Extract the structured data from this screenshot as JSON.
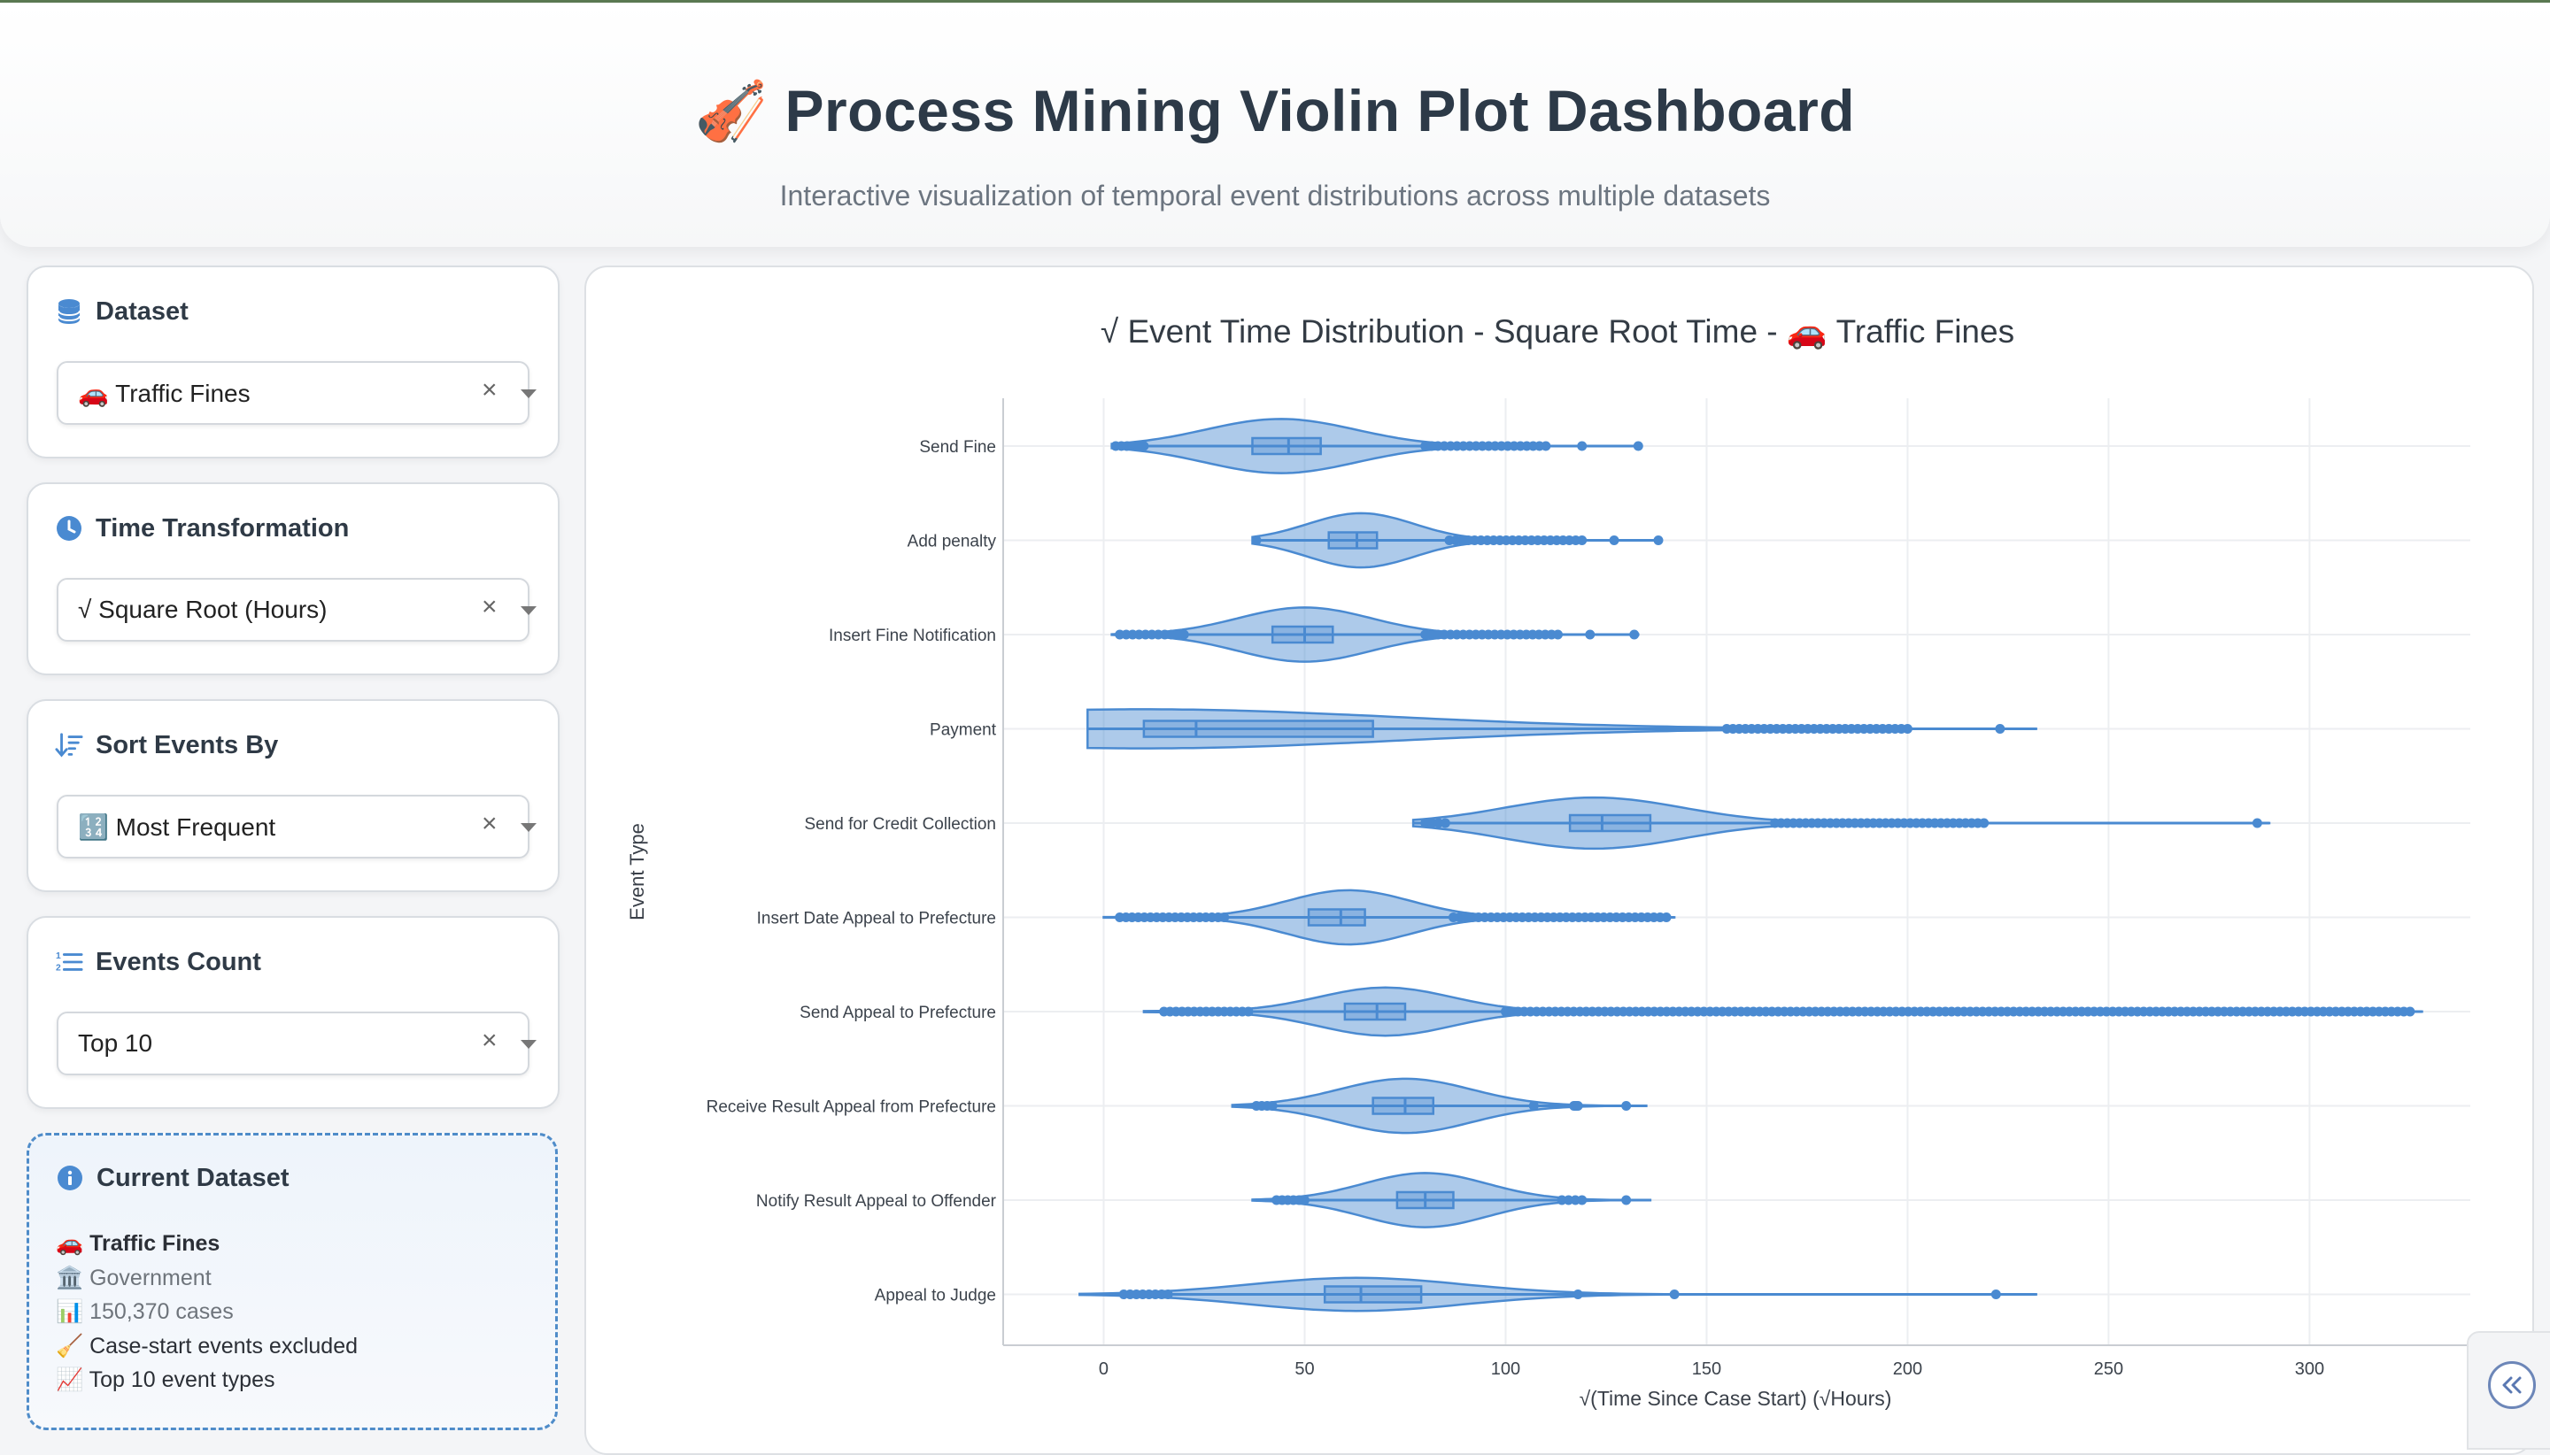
{
  "header": {
    "icon": "🎻",
    "title": "Process Mining Violin Plot Dashboard",
    "subtitle": "Interactive visualization of temporal event distributions across multiple datasets"
  },
  "controls": {
    "dataset": {
      "label": "Dataset",
      "icon": "database-icon",
      "value": "🚗 Traffic Fines"
    },
    "time_transformation": {
      "label": "Time Transformation",
      "icon": "clock-icon",
      "value": "√ Square Root (Hours)"
    },
    "sort_events": {
      "label": "Sort Events By",
      "icon": "sort-icon",
      "value": "🔢 Most Frequent"
    },
    "events_count": {
      "label": "Events Count",
      "icon": "numbered-list-icon",
      "value": "Top 10"
    },
    "clear_symbol": "×"
  },
  "current_dataset": {
    "title": "Current Dataset",
    "name": "🚗 Traffic Fines",
    "domain": "🏛️ Government",
    "cases": "📊 150,370 cases",
    "exclusion": "🧹 Case-start events excluded",
    "event_types": "📈 Top 10 event types"
  },
  "chart_data": {
    "type": "violin",
    "title": "√ Event Time Distribution - Square Root Time - 🚗 Traffic Fines",
    "xlabel": "√(Time Since Case Start) (√Hours)",
    "ylabel": "Event Type",
    "xlim": [
      -25,
      340
    ],
    "xticks": [
      0,
      50,
      100,
      150,
      200,
      250,
      300
    ],
    "orientation": "horizontal",
    "color": "#4a8ad1",
    "grid": true,
    "categories": [
      "Send Fine",
      "Add penalty",
      "Insert Fine Notification",
      "Payment",
      "Send for Credit Collection",
      "Insert Date Appeal to Prefecture",
      "Send Appeal to Prefecture",
      "Receive Result Appeal from Prefecture",
      "Notify Result Appeal to Offender",
      "Appeal to Judge"
    ],
    "series": [
      {
        "min": 2,
        "q1": 37,
        "median": 46,
        "q3": 54,
        "max": 133,
        "peak": 44,
        "halfwidth": 0.9,
        "outlier_ranges": [
          [
            3,
            10
          ],
          [
            80,
            110
          ],
          [
            119,
            119
          ],
          [
            133,
            133
          ]
        ]
      },
      {
        "min": 37,
        "q1": 56,
        "median": 63,
        "q3": 68,
        "max": 138,
        "peak": 64,
        "halfwidth": 0.9,
        "outlier_ranges": [
          [
            38,
            38
          ],
          [
            86,
            119
          ],
          [
            127,
            127
          ],
          [
            138,
            138
          ]
        ]
      },
      {
        "min": 2,
        "q1": 42,
        "median": 50,
        "q3": 57,
        "max": 133,
        "peak": 50,
        "halfwidth": 0.9,
        "outlier_ranges": [
          [
            4,
            20
          ],
          [
            80,
            113
          ],
          [
            121,
            121
          ],
          [
            132,
            132
          ]
        ]
      },
      {
        "min": -4,
        "q1": 10,
        "median": 23,
        "q3": 67,
        "max": 232,
        "peak": 10,
        "halfwidth": 0.65,
        "outlier_ranges": [
          [
            155,
            200
          ],
          [
            223,
            223
          ]
        ]
      },
      {
        "min": 77,
        "q1": 116,
        "median": 124,
        "q3": 136,
        "max": 290,
        "peak": 122,
        "halfwidth": 0.85,
        "outlier_ranges": [
          [
            80,
            85
          ],
          [
            167,
            219
          ],
          [
            287,
            287
          ]
        ]
      },
      {
        "min": 0,
        "q1": 51,
        "median": 59,
        "q3": 65,
        "max": 142,
        "peak": 61,
        "halfwidth": 0.9,
        "outlier_ranges": [
          [
            4,
            30
          ],
          [
            87,
            140
          ]
        ]
      },
      {
        "min": 10,
        "q1": 60,
        "median": 68,
        "q3": 75,
        "max": 328,
        "peak": 70,
        "halfwidth": 0.8,
        "outlier_ranges": [
          [
            15,
            36
          ],
          [
            100,
            325
          ]
        ]
      },
      {
        "min": 32,
        "q1": 67,
        "median": 75,
        "q3": 82,
        "max": 135,
        "peak": 75,
        "halfwidth": 0.9,
        "outlier_ranges": [
          [
            38,
            42
          ],
          [
            107,
            107
          ],
          [
            117,
            118
          ],
          [
            130,
            130
          ]
        ]
      },
      {
        "min": 37,
        "q1": 73,
        "median": 80,
        "q3": 87,
        "max": 136,
        "peak": 80,
        "halfwidth": 0.9,
        "outlier_ranges": [
          [
            43,
            50
          ],
          [
            114,
            119
          ],
          [
            130,
            130
          ]
        ]
      },
      {
        "min": -6,
        "q1": 55,
        "median": 64,
        "q3": 79,
        "max": 232,
        "peak": 63,
        "halfwidth": 0.55,
        "outlier_ranges": [
          [
            5,
            16
          ],
          [
            118,
            118
          ],
          [
            142,
            142
          ],
          [
            222,
            222
          ]
        ]
      }
    ]
  }
}
